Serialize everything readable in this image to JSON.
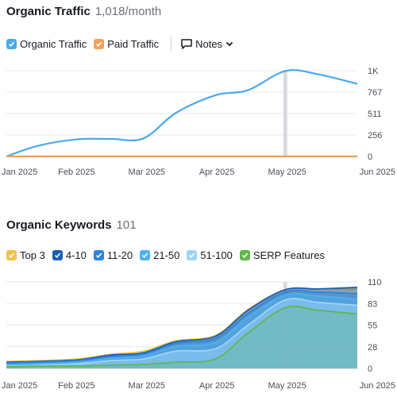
{
  "traffic": {
    "title": "Organic Traffic",
    "subtitle": "1,018/month",
    "legend": [
      {
        "label": "Organic Traffic",
        "color": "#4aa9ee",
        "checked": true
      },
      {
        "label": "Paid Traffic",
        "color": "#f5a055",
        "checked": true
      }
    ],
    "notes_label": "Notes"
  },
  "keywords": {
    "title": "Organic Keywords",
    "subtitle": "101",
    "legend": [
      {
        "label": "Top 3",
        "color": "#f5c14c"
      },
      {
        "label": "4-10",
        "color": "#1a5fb4"
      },
      {
        "label": "11-20",
        "color": "#2a86e0"
      },
      {
        "label": "21-50",
        "color": "#4cb2f2"
      },
      {
        "label": "51-100",
        "color": "#9fd3fa"
      },
      {
        "label": "SERP Features",
        "color": "#5eb84b"
      }
    ]
  },
  "chart_data": [
    {
      "type": "line",
      "x": [
        "2025-01-01",
        "2025-01-15",
        "2025-02-01",
        "2025-02-15",
        "2025-03-01",
        "2025-03-15",
        "2025-04-01",
        "2025-04-15",
        "2025-05-01",
        "2025-05-15",
        "2025-06-01"
      ],
      "xticks": [
        "Jan 2025",
        "Feb 2025",
        "Mar 2025",
        "Apr 2025",
        "May 2025",
        "Jun 2025"
      ],
      "yticks": [
        "0",
        "256",
        "511",
        "767",
        "1K"
      ],
      "ylim": [
        0,
        1022
      ],
      "grid": true,
      "series": [
        {
          "name": "Organic Traffic",
          "color": "#4aa9ee",
          "values": [
            0,
            130,
            205,
            208,
            215,
            520,
            730,
            790,
            1018,
            980,
            865
          ]
        },
        {
          "name": "Paid Traffic",
          "color": "#f5a055",
          "values": [
            0,
            0,
            0,
            0,
            0,
            0,
            0,
            0,
            0,
            0,
            0
          ]
        }
      ]
    },
    {
      "type": "area",
      "x": [
        "2025-01-01",
        "2025-01-15",
        "2025-02-01",
        "2025-02-15",
        "2025-03-01",
        "2025-03-15",
        "2025-04-01",
        "2025-04-15",
        "2025-05-01",
        "2025-05-15",
        "2025-06-01"
      ],
      "xticks": [
        "Jan 2025",
        "Feb 2025",
        "Mar 2025",
        "Apr 2025",
        "May 2025",
        "Jun 2025"
      ],
      "yticks": [
        "0",
        "28",
        "55",
        "83",
        "110"
      ],
      "ylim": [
        0,
        110
      ],
      "grid": true,
      "series": [
        {
          "name": "Top 3",
          "color": "#f5c14c",
          "values": [
            9,
            10,
            12,
            18,
            22,
            35,
            42,
            75,
            100,
            101,
            101
          ]
        },
        {
          "name": "4-10",
          "color": "#1a5fb4",
          "values": [
            8,
            9,
            11,
            17,
            20,
            34,
            41,
            74,
            100,
            101,
            103
          ]
        },
        {
          "name": "11-20",
          "color": "#2a86e0",
          "values": [
            7,
            8,
            10,
            15,
            18,
            32,
            38,
            70,
            97,
            97,
            95
          ]
        },
        {
          "name": "21-50",
          "color": "#4cb2f2",
          "values": [
            5,
            6,
            8,
            13,
            16,
            28,
            33,
            65,
            93,
            92,
            88
          ]
        },
        {
          "name": "51-100",
          "color": "#9fd3fa",
          "values": [
            3,
            4,
            6,
            10,
            12,
            22,
            25,
            55,
            87,
            84,
            80
          ]
        },
        {
          "name": "SERP Features",
          "color": "#5eb84b",
          "values": [
            2,
            3,
            3,
            4,
            5,
            8,
            12,
            45,
            77,
            74,
            69
          ]
        }
      ]
    }
  ]
}
